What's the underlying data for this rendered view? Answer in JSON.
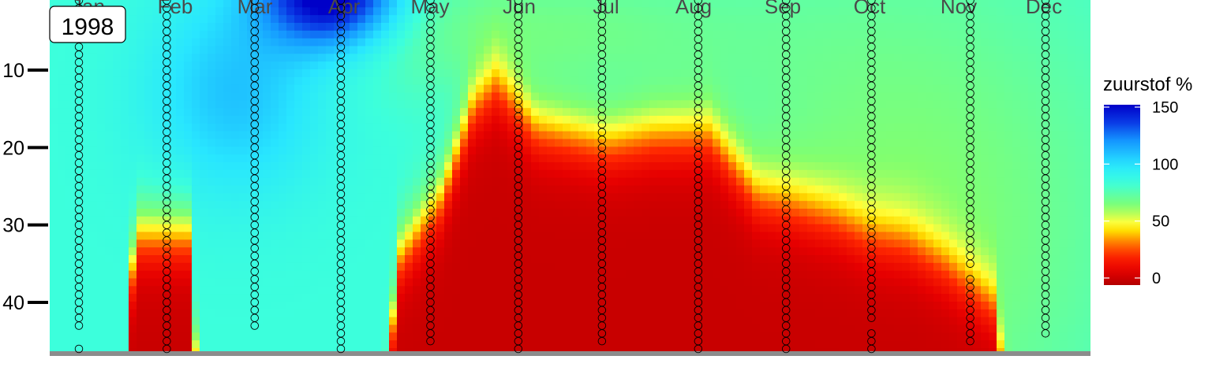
{
  "chart_data": {
    "type": "heatmap",
    "year_label": "1998",
    "months": [
      "Jan",
      "Feb",
      "Mar",
      "Apr",
      "May",
      "Jun",
      "Jul",
      "Aug",
      "Sep",
      "Oct",
      "Nov",
      "Dec"
    ],
    "y_ticks": [
      10,
      20,
      30,
      40
    ],
    "y_range": [
      0,
      47
    ],
    "y_reversed": true,
    "legend": {
      "title": "zuurstof %",
      "ticks": [
        150,
        100,
        50,
        0
      ],
      "range": [
        0,
        150
      ],
      "colors": [
        "#b30000",
        "#ff1a00",
        "#ff6600",
        "#ffcc00",
        "#ffff33",
        "#66ff66",
        "#33ffff",
        "#00ccff",
        "#0066ff",
        "#0000cc"
      ]
    },
    "grid": "off",
    "x_domain": [
      1,
      13
    ],
    "sampling": [
      {
        "x": 1.35,
        "depths": [
          1,
          2,
          3,
          4,
          5,
          6,
          7,
          8,
          9,
          10,
          11,
          12,
          13,
          14,
          15,
          16,
          17,
          18,
          19,
          20,
          21,
          22,
          23,
          24,
          25,
          26,
          27,
          28,
          29,
          30,
          31,
          32,
          33,
          34,
          35,
          36,
          37,
          38,
          39,
          40,
          41,
          42,
          43,
          46
        ]
      },
      {
        "x": 2.4,
        "depths": [
          1,
          2,
          3,
          4,
          5,
          6,
          7,
          8,
          9,
          10,
          11,
          12,
          13,
          14,
          15,
          16,
          17,
          18,
          19,
          20,
          21,
          22,
          23,
          24,
          25,
          26,
          27,
          28,
          29,
          30,
          31,
          32,
          33,
          34,
          35,
          36,
          37,
          38,
          39,
          40,
          41,
          42,
          43,
          44,
          45,
          46
        ]
      },
      {
        "x": 3.45,
        "depths": [
          1,
          2,
          3,
          4,
          5,
          6,
          7,
          8,
          9,
          10,
          11,
          12,
          13,
          14,
          15,
          16,
          17,
          18,
          19,
          20,
          21,
          22,
          23,
          24,
          25,
          26,
          27,
          28,
          29,
          30,
          31,
          32,
          33,
          34,
          35,
          36,
          37,
          38,
          39,
          40,
          41,
          42,
          43
        ]
      },
      {
        "x": 4.48,
        "depths": [
          1,
          2,
          3,
          4,
          5,
          6,
          7,
          8,
          9,
          10,
          11,
          12,
          13,
          14,
          15,
          16,
          17,
          18,
          19,
          20,
          21,
          22,
          23,
          24,
          25,
          26,
          27,
          28,
          29,
          30,
          31,
          32,
          33,
          34,
          35,
          36,
          37,
          38,
          39,
          40,
          41,
          42,
          43,
          44,
          45,
          46
        ]
      },
      {
        "x": 5.55,
        "depths": [
          1,
          2,
          3,
          4,
          5,
          6,
          7,
          8,
          9,
          10,
          11,
          12,
          13,
          14,
          15,
          16,
          17,
          18,
          19,
          20,
          21,
          22,
          23,
          24,
          25,
          26,
          27,
          28,
          29,
          30,
          31,
          32,
          33,
          34,
          35,
          36,
          37,
          38,
          39,
          40,
          41,
          42,
          43,
          44,
          45
        ]
      },
      {
        "x": 6.6,
        "depths": [
          1,
          2,
          3,
          4,
          5,
          6,
          7,
          8,
          9,
          10,
          11,
          12,
          13,
          14,
          15,
          16,
          17,
          18,
          19,
          20,
          21,
          22,
          23,
          24,
          25,
          26,
          27,
          28,
          29,
          30,
          31,
          32,
          33,
          34,
          35,
          36,
          37,
          38,
          39,
          40,
          41,
          42,
          43,
          44,
          45,
          46
        ]
      },
      {
        "x": 7.6,
        "depths": [
          1,
          2,
          3,
          4,
          5,
          6,
          7,
          8,
          9,
          10,
          11,
          12,
          13,
          14,
          15,
          16,
          17,
          18,
          19,
          20,
          21,
          22,
          23,
          24,
          25,
          26,
          27,
          28,
          29,
          30,
          31,
          32,
          33,
          34,
          35,
          36,
          37,
          38,
          39,
          40,
          41,
          42,
          43,
          44,
          45
        ]
      },
      {
        "x": 8.75,
        "depths": [
          1,
          2,
          3,
          4,
          5,
          6,
          7,
          8,
          9,
          10,
          11,
          12,
          13,
          14,
          15,
          16,
          17,
          18,
          19,
          20,
          21,
          22,
          23,
          24,
          25,
          26,
          27,
          28,
          29,
          30,
          31,
          32,
          33,
          34,
          35,
          36,
          37,
          38,
          39,
          40,
          41,
          42,
          43,
          44,
          45,
          46
        ]
      },
      {
        "x": 9.8,
        "depths": [
          1,
          2,
          3,
          4,
          5,
          6,
          7,
          8,
          9,
          10,
          11,
          12,
          13,
          14,
          15,
          16,
          17,
          18,
          19,
          20,
          21,
          22,
          23,
          24,
          25,
          26,
          27,
          28,
          29,
          30,
          31,
          32,
          33,
          34,
          35,
          36,
          37,
          38,
          39,
          40,
          41,
          42,
          43,
          44,
          45,
          46
        ]
      },
      {
        "x": 10.82,
        "depths": [
          1,
          2,
          3,
          4,
          5,
          6,
          7,
          8,
          9,
          10,
          11,
          12,
          13,
          14,
          15,
          16,
          17,
          18,
          19,
          20,
          21,
          22,
          23,
          24,
          25,
          26,
          27,
          28,
          29,
          30,
          31,
          32,
          33,
          34,
          35,
          36,
          37,
          38,
          39,
          40,
          41,
          42,
          44,
          45,
          46
        ]
      },
      {
        "x": 12.0,
        "depths": [
          1,
          2,
          3,
          4,
          5,
          6,
          7,
          8,
          9,
          10,
          11,
          12,
          13,
          14,
          15,
          16,
          17,
          18,
          19,
          20,
          21,
          22,
          23,
          24,
          25,
          26,
          27,
          28,
          29,
          30,
          31,
          32,
          33,
          34,
          35,
          37,
          38,
          39,
          40,
          41,
          42,
          43,
          44,
          45
        ]
      },
      {
        "x": 12.9,
        "depths": [
          1,
          2,
          3,
          4,
          5,
          6,
          7,
          8,
          9,
          10,
          11,
          12,
          13,
          14,
          15,
          16,
          17,
          18,
          19,
          20,
          21,
          22,
          23,
          24,
          25,
          26,
          27,
          28,
          29,
          30,
          31,
          32,
          33,
          34,
          35,
          36,
          37,
          38,
          39,
          40,
          41,
          42,
          43,
          44
        ]
      }
    ]
  }
}
